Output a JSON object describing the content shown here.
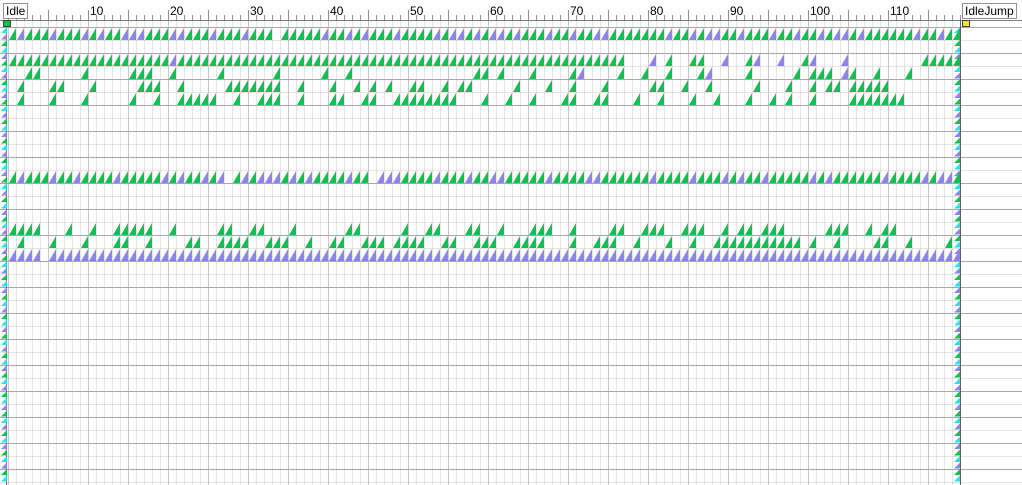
{
  "ruler": {
    "ticks": [
      "10",
      "20",
      "30",
      "40",
      "50",
      "60",
      "70",
      "80",
      "90",
      "100",
      "110"
    ],
    "tick_frames": [
      10,
      20,
      30,
      40,
      50,
      60,
      70,
      80,
      90,
      100,
      110
    ]
  },
  "clips": {
    "start": {
      "label": "Idle",
      "frame": 0,
      "marker_color": "#10c040"
    },
    "end": {
      "label": "IdleJump",
      "frame": 119,
      "marker_color": "#f0e040"
    }
  },
  "timeline": {
    "frame_count": 119,
    "track_count": 18,
    "colors": {
      "key_green": "#10c050",
      "key_purple": "#8c84ee",
      "edge_cyan": "#28e0f0",
      "grid_major": "#c8c8c8",
      "grid_minor": "#e4e4e4",
      "row_line": "#a8a8a8",
      "end_line": "#c04040"
    },
    "tracks": [
      {
        "keys": "gpgggpgggpgpggpppgggppgggpgggpggg.gggggpggpgpgggpggggpgppgpgppgpgggpggpggppgggggggpggpgppggpgggpggpggpgppgpggggggpggpggp"
      },
      {
        "keys": ""
      },
      {
        "keys": "ggggggggggggggggggggpgggggggggggggggggggggggggggggggggggggggggggggggggggggggg...p.g..gg..p..gp..p..gp...p.........gggggggggggggggg"
      },
      {
        "keys": "..gg.....g.....ggg..g.....g......g.....g..g...............gg.g...g....gp....g..g..g...gp....g.....g.ggg.pg..g...g......g..g..gg"
      },
      {
        "keys": ".g...gg...g.....ggg..g.....ggggggg..g...g..g.g.g..gg..g.gg.....g...g..g...g.....gg..g..g.....g...g..g.gg.ggggg...........gg"
      },
      {
        "keys": ".g...g...g.....g..g..ggggg..g..ggg..g...gg..gg..gggggggg...g..g..g...gg..gg...g..g...g..g...g..g.g..g....ggggggg........gg.g"
      },
      {
        "keys": ""
      },
      {
        "keys": ""
      },
      {
        "keys": ""
      },
      {
        "keys": ""
      },
      {
        "keys": ""
      },
      {
        "keys": "gpgggpggpggggpgggggpgpggpgp.gpgpppgpgpggggpgg.pppggggpgggpggppgggggpggggppggggggpggggpgggpgpggpgggggpgpggggggpggggpgppgpgg"
      },
      {
        "keys": ""
      },
      {
        "keys": ""
      },
      {
        "keys": ""
      },
      {
        "keys": "gggg...g..g..ggggg..g.....gg..gg...g......gg.....g..gg...gg..g...ggg..g....gg..ggg..ggg..g.gg.ggg.....ggg..g.gg.........ggg.g"
      },
      {
        "keys": ".g...g...g...gg..g....gg..gggg..ggg..g..gg..ggg.gggg..gg..ggg..gggg...g..ggg..g...g..g..ggggggggggg.g..g....gg..g....g.gggggg"
      },
      {
        "keys": "pppp.pppppppppppppppppppppppppppppppppppppppppppppppppppppppppppppppppppppppppppppppppppppppppppppppppppppppppppppppppppppppp"
      }
    ]
  }
}
